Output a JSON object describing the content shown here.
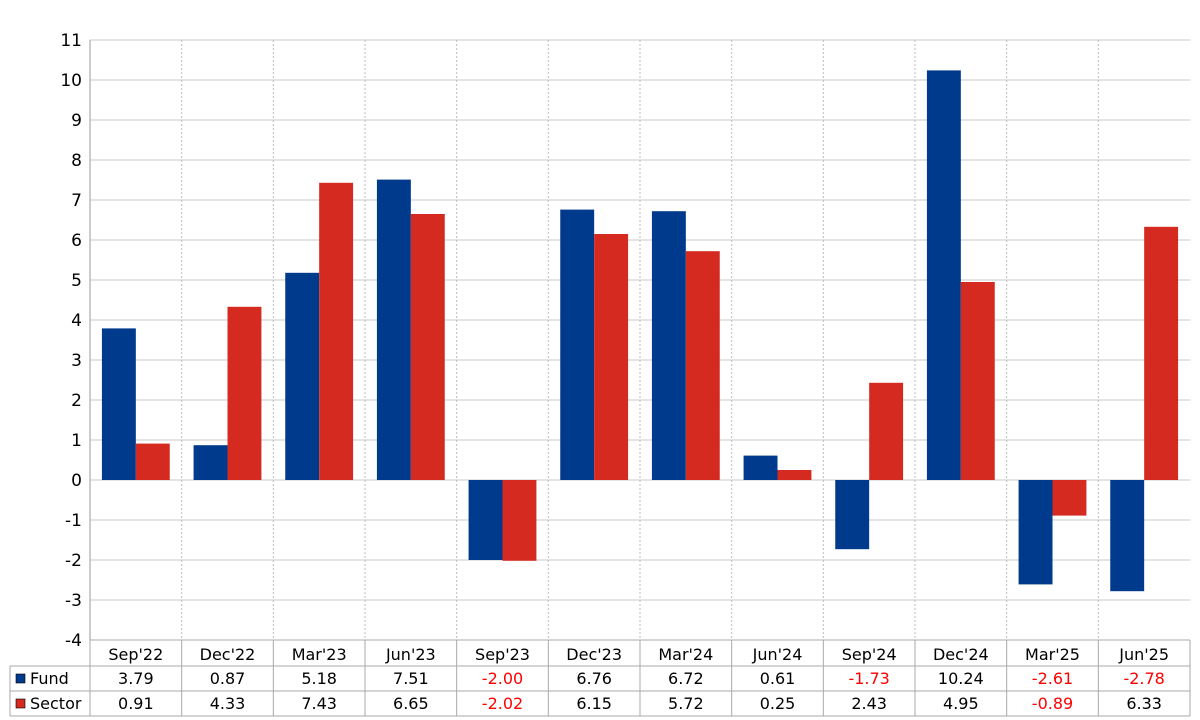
{
  "chart_data": {
    "type": "bar",
    "categories": [
      "Sep'22",
      "Dec'22",
      "Mar'23",
      "Jun'23",
      "Sep'23",
      "Dec'23",
      "Mar'24",
      "Jun'24",
      "Sep'24",
      "Dec'24",
      "Mar'25",
      "Jun'25"
    ],
    "series": [
      {
        "name": "Fund",
        "color": "#003a8c",
        "values": [
          3.79,
          0.87,
          5.18,
          7.51,
          -2.0,
          6.76,
          6.72,
          0.61,
          -1.73,
          10.24,
          -2.61,
          -2.78
        ],
        "labels": [
          "3.79",
          "0.87",
          "5.18",
          "7.51",
          "-2.00",
          "6.76",
          "6.72",
          "0.61",
          "-1.73",
          "10.24",
          "-2.61",
          "-2.78"
        ]
      },
      {
        "name": "Sector",
        "color": "#d42a20",
        "values": [
          0.91,
          4.33,
          7.43,
          6.65,
          -2.02,
          6.15,
          5.72,
          0.25,
          2.43,
          4.95,
          -0.89,
          6.33
        ],
        "labels": [
          "0.91",
          "4.33",
          "7.43",
          "6.65",
          "-2.02",
          "6.15",
          "5.72",
          "0.25",
          "2.43",
          "4.95",
          "-0.89",
          "6.33"
        ]
      }
    ],
    "yticks": [
      "11",
      "10",
      "9",
      "8",
      "7",
      "6",
      "5",
      "4",
      "3",
      "2",
      "1",
      "0",
      "-1",
      "-2",
      "-3",
      "-4"
    ],
    "ylim": [
      -4,
      11
    ],
    "grid": true,
    "negative_value_color": "#ff0000",
    "legend": "data table below chart"
  }
}
